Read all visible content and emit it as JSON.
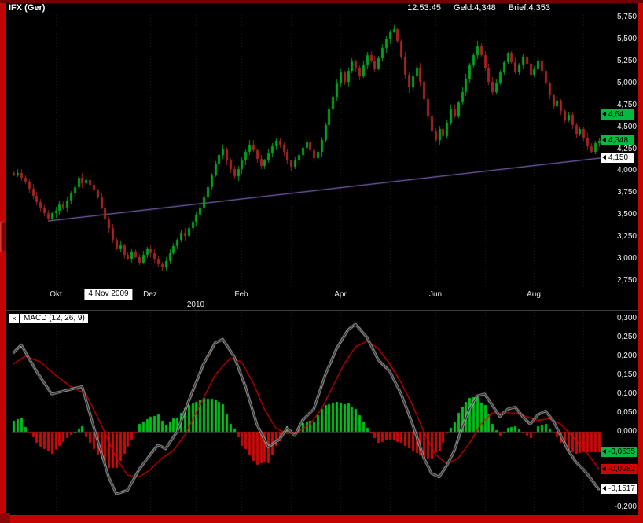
{
  "header": {
    "title": "IFX (Ger)",
    "time": "12:53:45",
    "geld": "Geld:4,348",
    "brief": "Brief:4,353"
  },
  "price_panel": {
    "y_ticks": [
      {
        "label": "5,750",
        "value": 5.75
      },
      {
        "label": "5,500",
        "value": 5.5
      },
      {
        "label": "5,250",
        "value": 5.25
      },
      {
        "label": "5,000",
        "value": 5.0
      },
      {
        "label": "4,750",
        "value": 4.75
      },
      {
        "label": "4,500",
        "value": 4.5
      },
      {
        "label": "4,250",
        "value": 4.25
      },
      {
        "label": "4,000",
        "value": 4.0
      },
      {
        "label": "3,750",
        "value": 3.75
      },
      {
        "label": "3,500",
        "value": 3.5
      },
      {
        "label": "3,250",
        "value": 3.25
      },
      {
        "label": "3,000",
        "value": 3.0
      },
      {
        "label": "2,750",
        "value": 2.75
      }
    ],
    "badges": [
      {
        "label": "4,64",
        "value": 4.64,
        "style": "green"
      },
      {
        "label": "4,348",
        "value": 4.348,
        "style": "green"
      },
      {
        "label": "4,150",
        "value": 4.15,
        "style": "white"
      }
    ],
    "x_labels": [
      {
        "label": "Okt",
        "index": 11
      },
      {
        "label": "Dez",
        "index": 36
      },
      {
        "label": "Feb",
        "index": 60
      },
      {
        "label": "Apr",
        "index": 86
      },
      {
        "label": "Jun",
        "index": 111
      },
      {
        "label": "Aug",
        "index": 137
      }
    ],
    "cursor_label": {
      "label": "4 Nov 2009",
      "index": 25
    },
    "year_label": {
      "label": "2010",
      "index": 48
    },
    "grid_indices": [
      11,
      24,
      36,
      48,
      60,
      73,
      86,
      99,
      111,
      124,
      137,
      150
    ]
  },
  "macd_panel": {
    "label": "MACD (12, 26, 9)",
    "close_glyph": "×",
    "y_ticks": [
      {
        "label": "0,300",
        "value": 0.3
      },
      {
        "label": "0,250",
        "value": 0.25
      },
      {
        "label": "0,200",
        "value": 0.2
      },
      {
        "label": "0,150",
        "value": 0.15
      },
      {
        "label": "0,100",
        "value": 0.1
      },
      {
        "label": "0,050",
        "value": 0.05
      },
      {
        "label": "0,000",
        "value": 0.0
      },
      {
        "label": "-0,050",
        "value": -0.05
      },
      {
        "label": "-0,100",
        "value": -0.1
      },
      {
        "label": "-0,150",
        "value": -0.15
      },
      {
        "label": "-0,200",
        "value": -0.2
      }
    ],
    "badges": [
      {
        "label": "-0,0535",
        "value": -0.0535,
        "style": "green"
      },
      {
        "label": "-0,0982",
        "value": -0.0982,
        "style": "red"
      },
      {
        "label": "-0,1517",
        "value": -0.1517,
        "style": "white"
      }
    ]
  },
  "chart_data": [
    {
      "type": "candlestick",
      "title": "IFX (Ger)",
      "ylim": [
        2.75,
        5.75
      ],
      "y_tick_step": 0.25,
      "bid": 4.348,
      "ask": 4.353,
      "last_price": 4.348,
      "closes": [
        3.95,
        3.98,
        3.92,
        3.88,
        3.8,
        3.72,
        3.65,
        3.58,
        3.52,
        3.46,
        3.52,
        3.55,
        3.62,
        3.58,
        3.66,
        3.74,
        3.82,
        3.92,
        3.86,
        3.9,
        3.84,
        3.78,
        3.7,
        3.58,
        3.45,
        3.35,
        3.22,
        3.12,
        3.15,
        3.05,
        3.0,
        3.08,
        3.02,
        2.96,
        3.05,
        3.12,
        3.06,
        3.0,
        2.94,
        2.9,
        2.97,
        3.06,
        3.14,
        3.22,
        3.3,
        3.26,
        3.35,
        3.42,
        3.5,
        3.58,
        3.7,
        3.82,
        3.95,
        4.08,
        4.18,
        4.25,
        4.12,
        4.02,
        3.94,
        4.02,
        4.12,
        4.22,
        4.3,
        4.24,
        4.14,
        4.06,
        4.12,
        4.2,
        4.28,
        4.34,
        4.3,
        4.22,
        4.12,
        4.05,
        4.12,
        4.18,
        4.26,
        4.33,
        4.24,
        4.15,
        4.22,
        4.35,
        4.52,
        4.7,
        4.85,
        5.0,
        5.12,
        5.02,
        5.14,
        5.25,
        5.18,
        5.08,
        5.2,
        5.32,
        5.26,
        5.16,
        5.28,
        5.4,
        5.5,
        5.58,
        5.62,
        5.48,
        5.3,
        5.1,
        4.95,
        5.08,
        5.18,
        5.02,
        4.82,
        4.62,
        4.45,
        4.35,
        4.48,
        4.4,
        4.55,
        4.7,
        4.62,
        4.78,
        4.9,
        5.05,
        5.2,
        5.32,
        5.42,
        5.32,
        5.18,
        5.02,
        4.9,
        5.0,
        5.12,
        5.24,
        5.34,
        5.24,
        5.12,
        5.2,
        5.3,
        5.22,
        5.1,
        5.16,
        5.26,
        5.14,
        5.0,
        4.86,
        4.74,
        4.8,
        4.68,
        4.58,
        4.64,
        4.52,
        4.42,
        4.48,
        4.38,
        4.28,
        4.22,
        4.32,
        4.348
      ],
      "trendline": {
        "from_index": 9,
        "from_price": 3.43,
        "to_index": 155,
        "to_price": 4.15
      },
      "colors": {
        "up": "#00a41e",
        "down": "#a42424",
        "trendline": "#7e62b8",
        "background": "#000000"
      }
    },
    {
      "type": "macd",
      "params": [
        12,
        26,
        9
      ],
      "ylim": [
        -0.2,
        0.3
      ],
      "macd_anchors": [
        [
          0,
          0.21
        ],
        [
          2,
          0.23
        ],
        [
          6,
          0.16
        ],
        [
          10,
          0.1
        ],
        [
          14,
          0.11
        ],
        [
          18,
          0.12
        ],
        [
          22,
          -0.02
        ],
        [
          25,
          -0.12
        ],
        [
          27,
          -0.165
        ],
        [
          30,
          -0.155
        ],
        [
          33,
          -0.1
        ],
        [
          36,
          -0.06
        ],
        [
          38,
          -0.035
        ],
        [
          40,
          -0.045
        ],
        [
          43,
          0.0
        ],
        [
          46,
          0.08
        ],
        [
          50,
          0.18
        ],
        [
          53,
          0.235
        ],
        [
          55,
          0.245
        ],
        [
          58,
          0.2
        ],
        [
          61,
          0.12
        ],
        [
          64,
          0.02
        ],
        [
          67,
          -0.04
        ],
        [
          70,
          -0.02
        ],
        [
          72,
          0.01
        ],
        [
          74,
          -0.01
        ],
        [
          76,
          0.03
        ],
        [
          79,
          0.06
        ],
        [
          82,
          0.15
        ],
        [
          85,
          0.22
        ],
        [
          88,
          0.27
        ],
        [
          90,
          0.285
        ],
        [
          93,
          0.25
        ],
        [
          96,
          0.19
        ],
        [
          99,
          0.16
        ],
        [
          102,
          0.1
        ],
        [
          105,
          0.02
        ],
        [
          108,
          -0.07
        ],
        [
          110,
          -0.11
        ],
        [
          112,
          -0.12
        ],
        [
          114,
          -0.09
        ],
        [
          116,
          -0.05
        ],
        [
          118,
          0.01
        ],
        [
          120,
          0.06
        ],
        [
          122,
          0.095
        ],
        [
          124,
          0.1
        ],
        [
          126,
          0.07
        ],
        [
          128,
          0.04
        ],
        [
          130,
          0.06
        ],
        [
          132,
          0.065
        ],
        [
          134,
          0.04
        ],
        [
          136,
          0.02
        ],
        [
          138,
          0.045
        ],
        [
          140,
          0.055
        ],
        [
          142,
          0.03
        ],
        [
          144,
          -0.01
        ],
        [
          146,
          -0.05
        ],
        [
          148,
          -0.08
        ],
        [
          150,
          -0.1
        ],
        [
          152,
          -0.125
        ],
        [
          154,
          -0.152
        ]
      ],
      "signal_anchors": [
        [
          0,
          0.18
        ],
        [
          3,
          0.2
        ],
        [
          7,
          0.185
        ],
        [
          11,
          0.15
        ],
        [
          15,
          0.12
        ],
        [
          19,
          0.1
        ],
        [
          23,
          0.02
        ],
        [
          27,
          -0.07
        ],
        [
          30,
          -0.115
        ],
        [
          33,
          -0.12
        ],
        [
          36,
          -0.1
        ],
        [
          39,
          -0.07
        ],
        [
          42,
          -0.05
        ],
        [
          45,
          -0.01
        ],
        [
          49,
          0.07
        ],
        [
          53,
          0.15
        ],
        [
          57,
          0.195
        ],
        [
          60,
          0.185
        ],
        [
          63,
          0.13
        ],
        [
          66,
          0.06
        ],
        [
          69,
          0.01
        ],
        [
          72,
          -0.005
        ],
        [
          75,
          0.0
        ],
        [
          78,
          0.02
        ],
        [
          81,
          0.06
        ],
        [
          84,
          0.12
        ],
        [
          87,
          0.18
        ],
        [
          90,
          0.225
        ],
        [
          93,
          0.24
        ],
        [
          96,
          0.22
        ],
        [
          99,
          0.18
        ],
        [
          102,
          0.13
        ],
        [
          105,
          0.07
        ],
        [
          108,
          0.0
        ],
        [
          111,
          -0.06
        ],
        [
          114,
          -0.085
        ],
        [
          117,
          -0.07
        ],
        [
          120,
          -0.03
        ],
        [
          123,
          0.02
        ],
        [
          126,
          0.05
        ],
        [
          129,
          0.05
        ],
        [
          132,
          0.05
        ],
        [
          135,
          0.04
        ],
        [
          138,
          0.03
        ],
        [
          141,
          0.035
        ],
        [
          144,
          0.02
        ],
        [
          147,
          -0.01
        ],
        [
          150,
          -0.045
        ],
        [
          152,
          -0.07
        ],
        [
          154,
          -0.098
        ]
      ],
      "last": {
        "macd": -0.1517,
        "signal": -0.0982,
        "histogram": -0.0535
      },
      "colors": {
        "hist_up": "#00c31c",
        "hist_down": "#cf0a0a",
        "signal": "#e80000",
        "macd_core": "#161616",
        "macd_halo": "#c9c9c9"
      }
    }
  ]
}
